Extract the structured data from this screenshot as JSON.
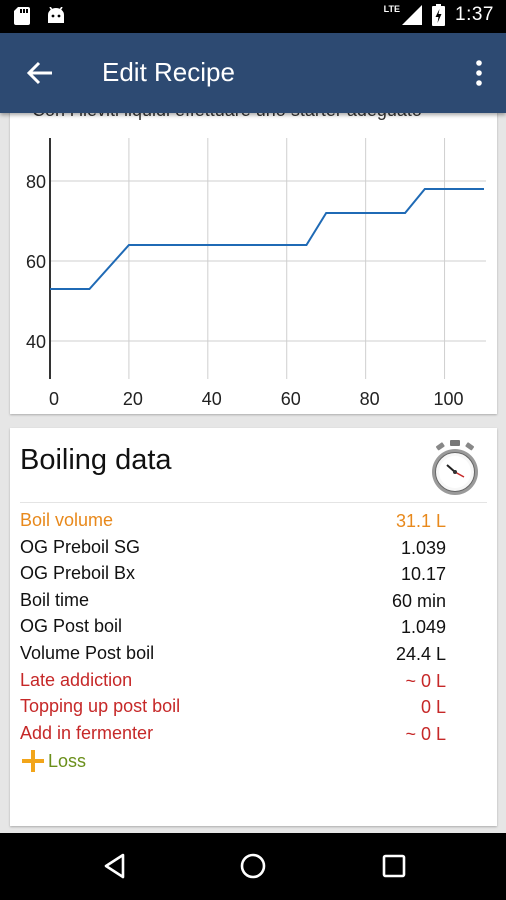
{
  "status_bar": {
    "time": "1:37",
    "network": "LTE",
    "icons": [
      "sd-card-icon",
      "android-icon",
      "signal-icon",
      "battery-charging-icon"
    ]
  },
  "app_bar": {
    "title": "Edit Recipe",
    "back_icon": "arrow-left-icon",
    "menu_icon": "more-vertical-icon",
    "color": "#2d4a72"
  },
  "previous_section": {
    "cut_text": "Con i lieviti liquidi effettuare uno starter adeguato"
  },
  "chart_data": {
    "type": "line",
    "x_ticks": [
      "0",
      "20",
      "40",
      "60",
      "80",
      "100"
    ],
    "y_ticks": [
      "40",
      "60",
      "80"
    ],
    "xlim": [
      0,
      110
    ],
    "ylim": [
      30,
      90
    ],
    "grid": true,
    "line_color": "#1f6ab5",
    "x": [
      0,
      10,
      20,
      65,
      70,
      90,
      95,
      110
    ],
    "y": [
      53,
      53,
      64,
      64,
      72,
      72,
      78,
      78
    ]
  },
  "boiling": {
    "title": "Boiling data",
    "stopwatch_icon": "stopwatch-icon",
    "rows": [
      {
        "label": "Boil volume",
        "value": "31.1 L",
        "color": "#e8891c"
      },
      {
        "label": "OG Preboil SG",
        "value": "1.039",
        "color": "#111111"
      },
      {
        "label": "OG Preboil Bx",
        "value": "10.17",
        "color": "#111111"
      },
      {
        "label": "Boil time",
        "value": "60 min",
        "color": "#111111"
      },
      {
        "label": "OG Post boil",
        "value": "1.049",
        "color": "#111111"
      },
      {
        "label": "Volume Post boil",
        "value": "24.4 L",
        "color": "#111111"
      },
      {
        "label": "Late addiction",
        "value": "~ 0 L",
        "color": "#c62828"
      },
      {
        "label": "Topping up post boil",
        "value": "0 L",
        "color": "#c62828"
      },
      {
        "label": "Add in fermenter",
        "value": "~ 0 L",
        "color": "#c62828"
      }
    ],
    "loss_label": "Loss",
    "loss_icon": "plus-icon",
    "loss_icon_color": "#f2a51a"
  },
  "nav_bar": {
    "back": "triangle-back-icon",
    "home": "circle-home-icon",
    "recents": "square-recents-icon"
  }
}
